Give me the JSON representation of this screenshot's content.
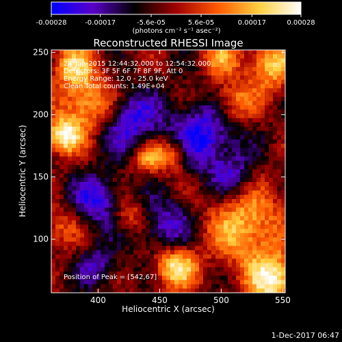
{
  "chart_data": {
    "type": "heatmap",
    "title": "Reconstructed RHESSI Image",
    "xlabel": "Heliocentric X (arcsec)",
    "ylabel": "Heliocentric Y (arcsec)",
    "xlim": [
      362,
      552
    ],
    "ylim": [
      57,
      252
    ],
    "x_ticks": [
      400,
      450,
      500,
      550
    ],
    "y_ticks": [
      100,
      150,
      200,
      250
    ],
    "colorbar": {
      "range": [
        -0.00028,
        0.00028
      ],
      "ticks": [
        "-0.00028",
        "-0.00017",
        "-5.6e-05",
        "5.6e-05",
        "0.00017",
        "0.00028"
      ],
      "tick_values": [
        -0.00028,
        -0.00017,
        -5.6e-05,
        5.6e-05,
        0.00017,
        0.00028
      ],
      "units_label": "(photons cm⁻² s⁻¹ asec⁻²)",
      "colors": [
        "#0000ff",
        "#5a00c8",
        "#000000",
        "#a00000",
        "#ff5a00",
        "#ffd040",
        "#ffffff"
      ]
    },
    "annotations": [
      "24-Jun-2015 12:44:32.000 to 12:54:32.000",
      "Detectors: 3F 5F 6F 7F 8F 9F, Att 0",
      "Energy Range: 12.0 - 25.0 keV",
      "Clean     Total counts: 1.49E+04"
    ],
    "peak_label": "Position of Peak = [542,67]",
    "peak": [
      542,
      67
    ],
    "bright_sources": [
      {
        "x": 372,
        "y": 183,
        "level": 1.0,
        "sigma": 10
      },
      {
        "x": 392,
        "y": 208,
        "level": 0.8,
        "sigma": 16
      },
      {
        "x": 380,
        "y": 240,
        "level": 0.7,
        "sigma": 12
      },
      {
        "x": 463,
        "y": 78,
        "level": 0.95,
        "sigma": 12
      },
      {
        "x": 542,
        "y": 67,
        "level": 1.0,
        "sigma": 14
      },
      {
        "x": 520,
        "y": 110,
        "level": 0.75,
        "sigma": 22
      },
      {
        "x": 540,
        "y": 240,
        "level": 0.8,
        "sigma": 14
      },
      {
        "x": 510,
        "y": 210,
        "level": 0.6,
        "sigma": 12
      },
      {
        "x": 460,
        "y": 168,
        "level": 0.7,
        "sigma": 10
      },
      {
        "x": 440,
        "y": 165,
        "level": 0.6,
        "sigma": 9
      },
      {
        "x": 500,
        "y": 245,
        "level": 0.55,
        "sigma": 10
      },
      {
        "x": 370,
        "y": 110,
        "level": 0.4,
        "sigma": 12
      },
      {
        "x": 425,
        "y": 120,
        "level": 0.5,
        "sigma": 10
      }
    ],
    "dark_sources": [
      {
        "x": 485,
        "y": 182,
        "level": -0.8,
        "sigma": 20
      },
      {
        "x": 425,
        "y": 195,
        "level": -0.7,
        "sigma": 18
      },
      {
        "x": 400,
        "y": 130,
        "level": -0.7,
        "sigma": 15
      },
      {
        "x": 455,
        "y": 110,
        "level": -0.6,
        "sigma": 16
      },
      {
        "x": 400,
        "y": 78,
        "level": -0.5,
        "sigma": 12
      },
      {
        "x": 510,
        "y": 150,
        "level": -0.5,
        "sigma": 12
      }
    ]
  },
  "footer": {
    "date": "1-Dec-2017 06:47"
  }
}
